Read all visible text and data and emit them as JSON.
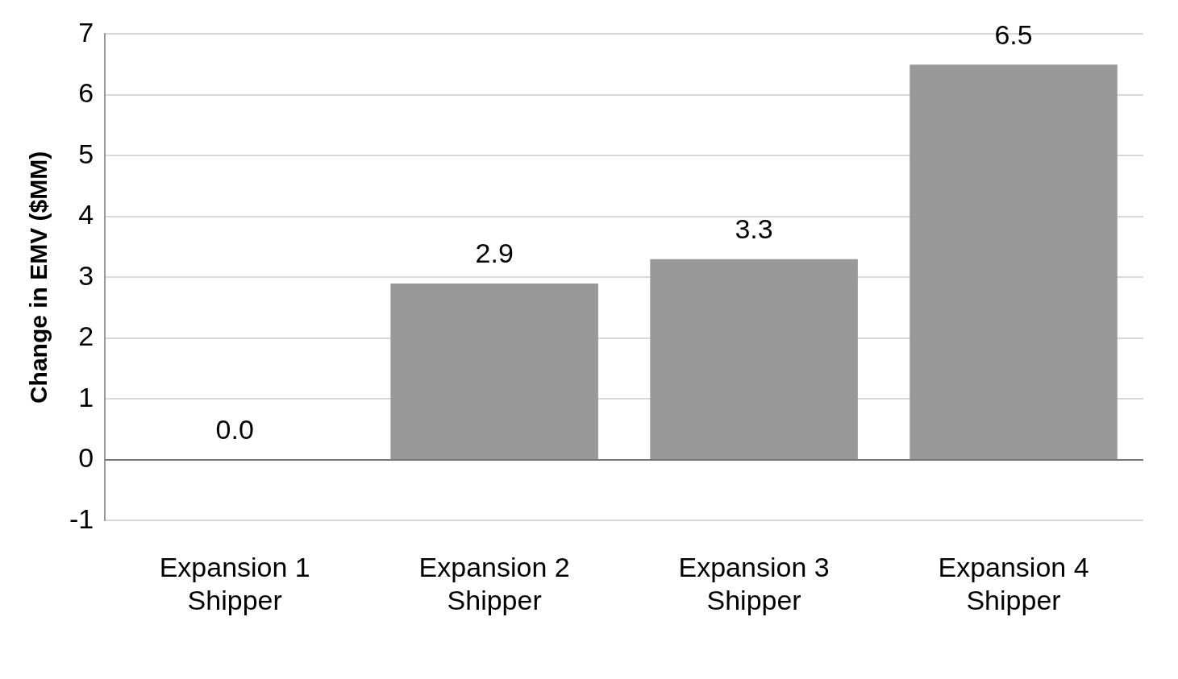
{
  "chart_data": {
    "type": "bar",
    "ylabel": "Change in EMV ($MM)",
    "categories": [
      "Expansion 1\nShipper",
      "Expansion 2\nShipper",
      "Expansion 3\nShipper",
      "Expansion 4\nShipper"
    ],
    "values": [
      0.0,
      2.9,
      3.3,
      6.5
    ],
    "color": "#999999",
    "value_labels": [
      "0.0",
      "2.9",
      "3.3",
      "6.5"
    ],
    "ylim": [
      -1,
      7
    ],
    "yticks": [
      -1,
      0,
      1,
      2,
      3,
      4,
      5,
      6,
      7
    ],
    "grid": "y",
    "legend": false
  }
}
